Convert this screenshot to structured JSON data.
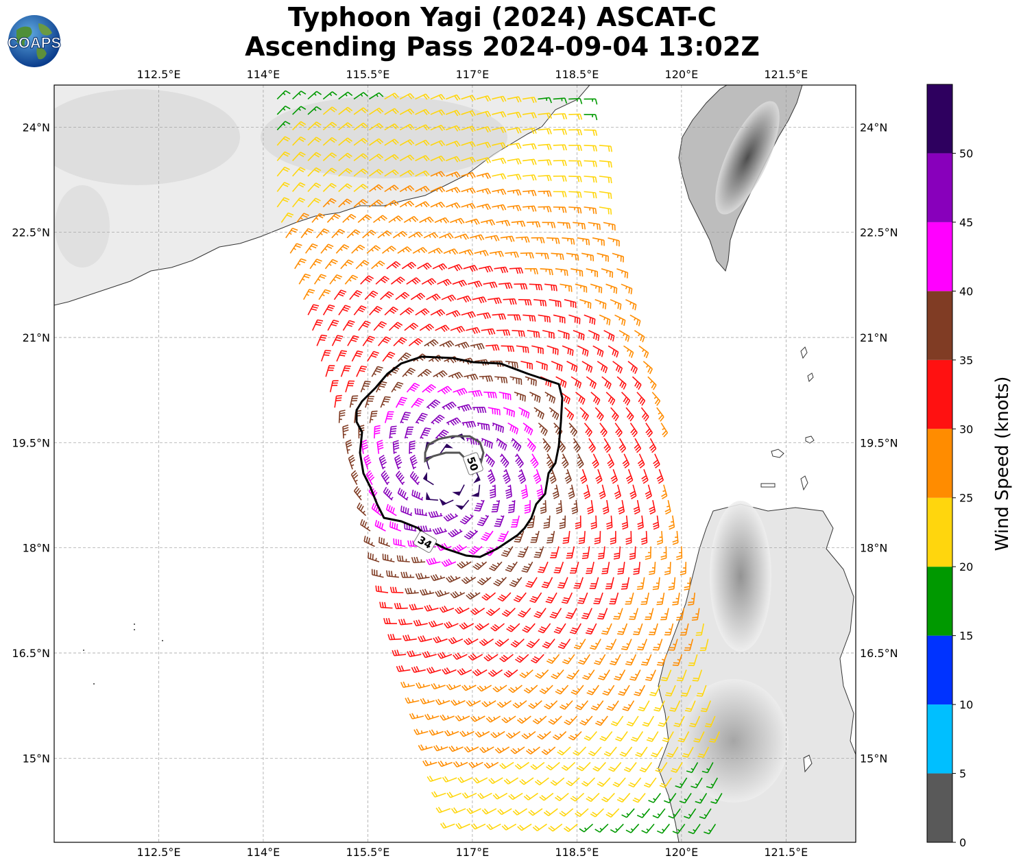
{
  "title": {
    "line1": "Typhoon Yagi (2024) ASCAT-C",
    "line2": "Ascending Pass 2024-09-04 13:02Z"
  },
  "logo": {
    "text": "COAPS",
    "icon": "globe-logo-icon"
  },
  "map": {
    "lon_range": [
      111.0,
      122.5
    ],
    "lat_range": [
      13.8,
      24.6
    ],
    "lon_ticks": [
      "112.5°E",
      "114°E",
      "115.5°E",
      "117°E",
      "118.5°E",
      "120°E",
      "121.5°E"
    ],
    "lon_tick_values": [
      112.5,
      114.0,
      115.5,
      117.0,
      118.5,
      120.0,
      121.5
    ],
    "lat_ticks": [
      "24°N",
      "22.5°N",
      "21°N",
      "19.5°N",
      "18°N",
      "16.5°N",
      "15°N"
    ],
    "lat_tick_values": [
      24.0,
      22.5,
      21.0,
      19.5,
      18.0,
      16.5,
      15.0
    ],
    "storm_center": {
      "lon": 116.7,
      "lat": 19.1
    },
    "contours": [
      {
        "label": "34",
        "color": "#000000"
      },
      {
        "label": "50",
        "color": "#555555"
      }
    ],
    "land_labels": []
  },
  "colorbar": {
    "label": "Wind Speed (knots)",
    "ticks": [
      "0",
      "5",
      "10",
      "15",
      "20",
      "25",
      "30",
      "35",
      "40",
      "45",
      "50"
    ],
    "bins": [
      {
        "range": [
          0,
          5
        ],
        "color": "#595959"
      },
      {
        "range": [
          5,
          10
        ],
        "color": "#00bfff"
      },
      {
        "range": [
          10,
          15
        ],
        "color": "#0033ff"
      },
      {
        "range": [
          15,
          20
        ],
        "color": "#009900"
      },
      {
        "range": [
          20,
          25
        ],
        "color": "#ffd60d"
      },
      {
        "range": [
          25,
          30
        ],
        "color": "#ff8c00"
      },
      {
        "range": [
          30,
          35
        ],
        "color": "#ff1111"
      },
      {
        "range": [
          35,
          40
        ],
        "color": "#803c24"
      },
      {
        "range": [
          40,
          45
        ],
        "color": "#ff00ff"
      },
      {
        "range": [
          45,
          50
        ],
        "color": "#8800bb"
      },
      {
        "range": [
          50,
          55
        ],
        "color": "#2e005f"
      }
    ]
  }
}
